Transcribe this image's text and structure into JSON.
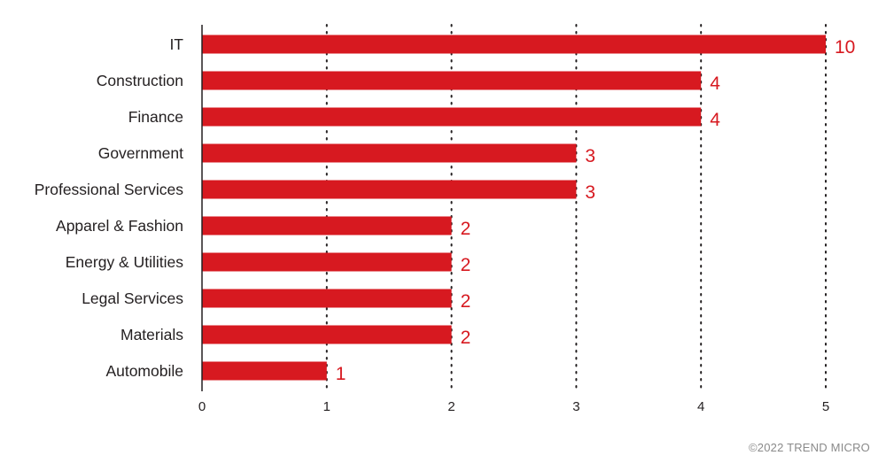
{
  "chart_data": {
    "type": "bar",
    "orientation": "horizontal",
    "categories": [
      "IT",
      "Construction",
      "Finance",
      "Government",
      "Professional Services",
      "Apparel & Fashion",
      "Energy & Utilities",
      "Legal Services",
      "Materials",
      "Automobile"
    ],
    "values": [
      10,
      4,
      4,
      3,
      3,
      2,
      2,
      2,
      2,
      1
    ],
    "data_labels": [
      "10",
      "4",
      "4",
      "3",
      "3",
      "2",
      "2",
      "2",
      "2",
      "1"
    ],
    "xlim": [
      0,
      5
    ],
    "xticks": [
      "0",
      "1",
      "2",
      "3",
      "4",
      "5"
    ],
    "title": "",
    "xlabel": "",
    "ylabel": "",
    "grid": "vertical dotted",
    "legend": "none",
    "bar_color": "#d71920",
    "label_color": "#d71920"
  },
  "footer": {
    "copyright": "©2022 TREND MICRO"
  }
}
